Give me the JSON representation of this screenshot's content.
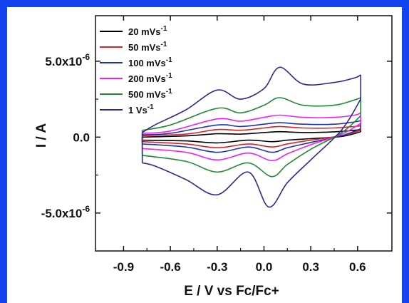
{
  "chart_data": {
    "type": "line",
    "title": "",
    "xlabel": "E / V vs Fc/Fc+",
    "ylabel": "I / A",
    "xlim": [
      -1.08,
      0.82
    ],
    "ylim": [
      -7.5e-06,
      8e-06
    ],
    "grid": false,
    "legend_position": "top-left",
    "x_ticks": [
      {
        "value": -0.9,
        "label": "-0.9"
      },
      {
        "value": -0.6,
        "label": "-0.6"
      },
      {
        "value": -0.3,
        "label": "-0.3"
      },
      {
        "value": 0.0,
        "label": "0.0"
      },
      {
        "value": 0.3,
        "label": "0.3"
      },
      {
        "value": 0.6,
        "label": "0.6"
      }
    ],
    "y_ticks": [
      {
        "value": 5e-06,
        "label_base": "5.0x10",
        "label_exp": "-6"
      },
      {
        "value": 0.0,
        "label_base": "0.0",
        "label_exp": ""
      },
      {
        "value": -5e-06,
        "label_base": "-5.0x10",
        "label_exp": "-6"
      }
    ],
    "series": [
      {
        "name_base": "20 mVs",
        "name_exp": "-1",
        "color": "#000000",
        "forward": [
          [
            -0.78,
            0.0
          ],
          [
            -0.5,
            8e-08
          ],
          [
            -0.3,
            2.2e-07
          ],
          [
            -0.15,
            2e-07
          ],
          [
            0.0,
            3e-07
          ],
          [
            0.1,
            3.6e-07
          ],
          [
            0.25,
            3e-07
          ],
          [
            0.45,
            3.5e-07
          ],
          [
            0.58,
            4.5e-07
          ],
          [
            0.62,
            5e-07
          ]
        ],
        "reverse": [
          [
            0.62,
            3.5e-07
          ],
          [
            0.5,
            5e-08
          ],
          [
            0.3,
            -1e-07
          ],
          [
            0.15,
            -2e-07
          ],
          [
            0.05,
            -3e-07
          ],
          [
            -0.1,
            -2e-07
          ],
          [
            -0.3,
            -3.8e-07
          ],
          [
            -0.5,
            -2.5e-07
          ],
          [
            -0.78,
            -2e-07
          ]
        ]
      },
      {
        "name_base": "50 mVs",
        "name_exp": "-1",
        "color": "#dd2222",
        "forward": [
          [
            -0.78,
            1e-07
          ],
          [
            -0.5,
            2e-07
          ],
          [
            -0.3,
            5e-07
          ],
          [
            -0.15,
            4.5e-07
          ],
          [
            0.0,
            6e-07
          ],
          [
            0.1,
            7e-07
          ],
          [
            0.25,
            6e-07
          ],
          [
            0.45,
            6e-07
          ],
          [
            0.58,
            7e-07
          ],
          [
            0.62,
            7.5e-07
          ]
        ],
        "reverse": [
          [
            0.62,
            4.5e-07
          ],
          [
            0.5,
            1e-07
          ],
          [
            0.3,
            -2e-07
          ],
          [
            0.15,
            -4.5e-07
          ],
          [
            0.05,
            -6.5e-07
          ],
          [
            -0.1,
            -4.5e-07
          ],
          [
            -0.3,
            -7e-07
          ],
          [
            -0.5,
            -4.5e-07
          ],
          [
            -0.78,
            -3e-07
          ]
        ]
      },
      {
        "name_base": "100 mVs",
        "name_exp": "-1",
        "color": "#2233aa",
        "forward": [
          [
            -0.78,
            1.5e-07
          ],
          [
            -0.6,
            2.5e-07
          ],
          [
            -0.3,
            8e-07
          ],
          [
            -0.15,
            7e-07
          ],
          [
            0.0,
            8.5e-07
          ],
          [
            0.1,
            9.5e-07
          ],
          [
            0.25,
            8.5e-07
          ],
          [
            0.45,
            8.5e-07
          ],
          [
            0.58,
            1e-06
          ],
          [
            0.62,
            1.1e-06
          ]
        ],
        "reverse": [
          [
            0.62,
            5.5e-07
          ],
          [
            0.5,
            1e-07
          ],
          [
            0.3,
            -3.5e-07
          ],
          [
            0.15,
            -7e-07
          ],
          [
            0.05,
            -1e-06
          ],
          [
            -0.1,
            -6.5e-07
          ],
          [
            -0.3,
            -1e-06
          ],
          [
            -0.5,
            -6.5e-07
          ],
          [
            -0.78,
            -4.5e-07
          ]
        ]
      },
      {
        "name_base": "200 mVs",
        "name_exp": "-1",
        "color": "#ee22ee",
        "forward": [
          [
            -0.78,
            2.5e-07
          ],
          [
            -0.6,
            4e-07
          ],
          [
            -0.3,
            1.2e-06
          ],
          [
            -0.15,
            1.05e-06
          ],
          [
            0.0,
            1.3e-06
          ],
          [
            0.1,
            1.45e-06
          ],
          [
            0.25,
            1.3e-06
          ],
          [
            0.45,
            1.3e-06
          ],
          [
            0.58,
            1.45e-06
          ],
          [
            0.62,
            1.6e-06
          ]
        ],
        "reverse": [
          [
            0.62,
            9e-07
          ],
          [
            0.5,
            2e-07
          ],
          [
            0.3,
            -5e-07
          ],
          [
            0.15,
            -1.1e-06
          ],
          [
            0.05,
            -1.55e-06
          ],
          [
            -0.1,
            -1.05e-06
          ],
          [
            -0.3,
            -1.5e-06
          ],
          [
            -0.5,
            -1e-06
          ],
          [
            -0.78,
            -7.5e-07
          ]
        ]
      },
      {
        "name_base": "500 mVs",
        "name_exp": "-1",
        "color": "#228833",
        "forward": [
          [
            -0.78,
            4.5e-07
          ],
          [
            -0.6,
            8e-07
          ],
          [
            -0.3,
            1.9e-06
          ],
          [
            -0.15,
            1.6e-06
          ],
          [
            0.0,
            2.1e-06
          ],
          [
            0.1,
            2.6e-06
          ],
          [
            0.25,
            2.1e-06
          ],
          [
            0.45,
            2.1e-06
          ],
          [
            0.58,
            2.45e-06
          ],
          [
            0.62,
            2.6e-06
          ]
        ],
        "reverse": [
          [
            0.62,
            1.4e-06
          ],
          [
            0.5,
            3e-07
          ],
          [
            0.3,
            -8e-07
          ],
          [
            0.15,
            -1.8e-06
          ],
          [
            0.05,
            -2.6e-06
          ],
          [
            -0.1,
            -1.7e-06
          ],
          [
            -0.3,
            -2.3e-06
          ],
          [
            -0.5,
            -1.6e-06
          ],
          [
            -0.78,
            -1.2e-06
          ]
        ]
      },
      {
        "name_base": "1 Vs",
        "name_exp": "-1",
        "color": "#2a2a8c",
        "forward": [
          [
            -0.78,
            3e-07
          ],
          [
            -0.7,
            8e-07
          ],
          [
            -0.5,
            1.8e-06
          ],
          [
            -0.3,
            3.1e-06
          ],
          [
            -0.15,
            2.5e-06
          ],
          [
            0.0,
            3.2e-06
          ],
          [
            0.1,
            4.6e-06
          ],
          [
            0.25,
            3.5e-06
          ],
          [
            0.45,
            3.6e-06
          ],
          [
            0.58,
            3.9e-06
          ],
          [
            0.62,
            4.1e-06
          ]
        ],
        "reverse": [
          [
            0.62,
            2.5e-06
          ],
          [
            0.5,
            5e-07
          ],
          [
            0.3,
            -1.5e-06
          ],
          [
            0.15,
            -3e-06
          ],
          [
            0.03,
            -4.6e-06
          ],
          [
            -0.1,
            -2.3e-06
          ],
          [
            -0.3,
            -3.8e-06
          ],
          [
            -0.5,
            -2.8e-06
          ],
          [
            -0.7,
            -1.9e-06
          ],
          [
            -0.78,
            -1.7e-06
          ]
        ]
      }
    ]
  }
}
